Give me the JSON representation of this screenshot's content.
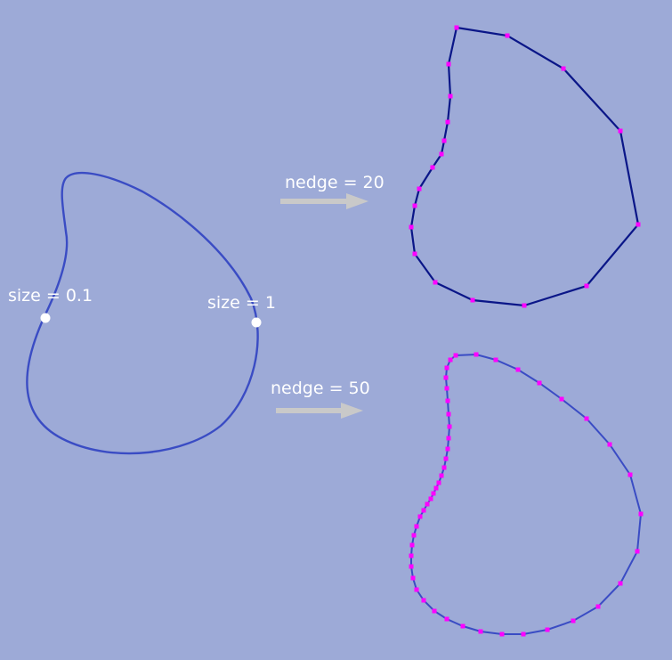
{
  "colors": {
    "background": "#9daad7",
    "curve": "#3a4cc4",
    "coarse_polygon": "#0a1688",
    "fine_polygon": "#3a4cc4",
    "vertex": "#ff00ff",
    "size_point": "#ffffff",
    "arrow": "#c9c9c9",
    "label_text": "#ffffff"
  },
  "labels": {
    "size_small": "size = 0.1",
    "size_large": "size = 1",
    "nedge_coarse": "nedge = 20",
    "nedge_fine": "nedge = 50"
  },
  "icons": {
    "arrow": "right-arrow-icon"
  }
}
